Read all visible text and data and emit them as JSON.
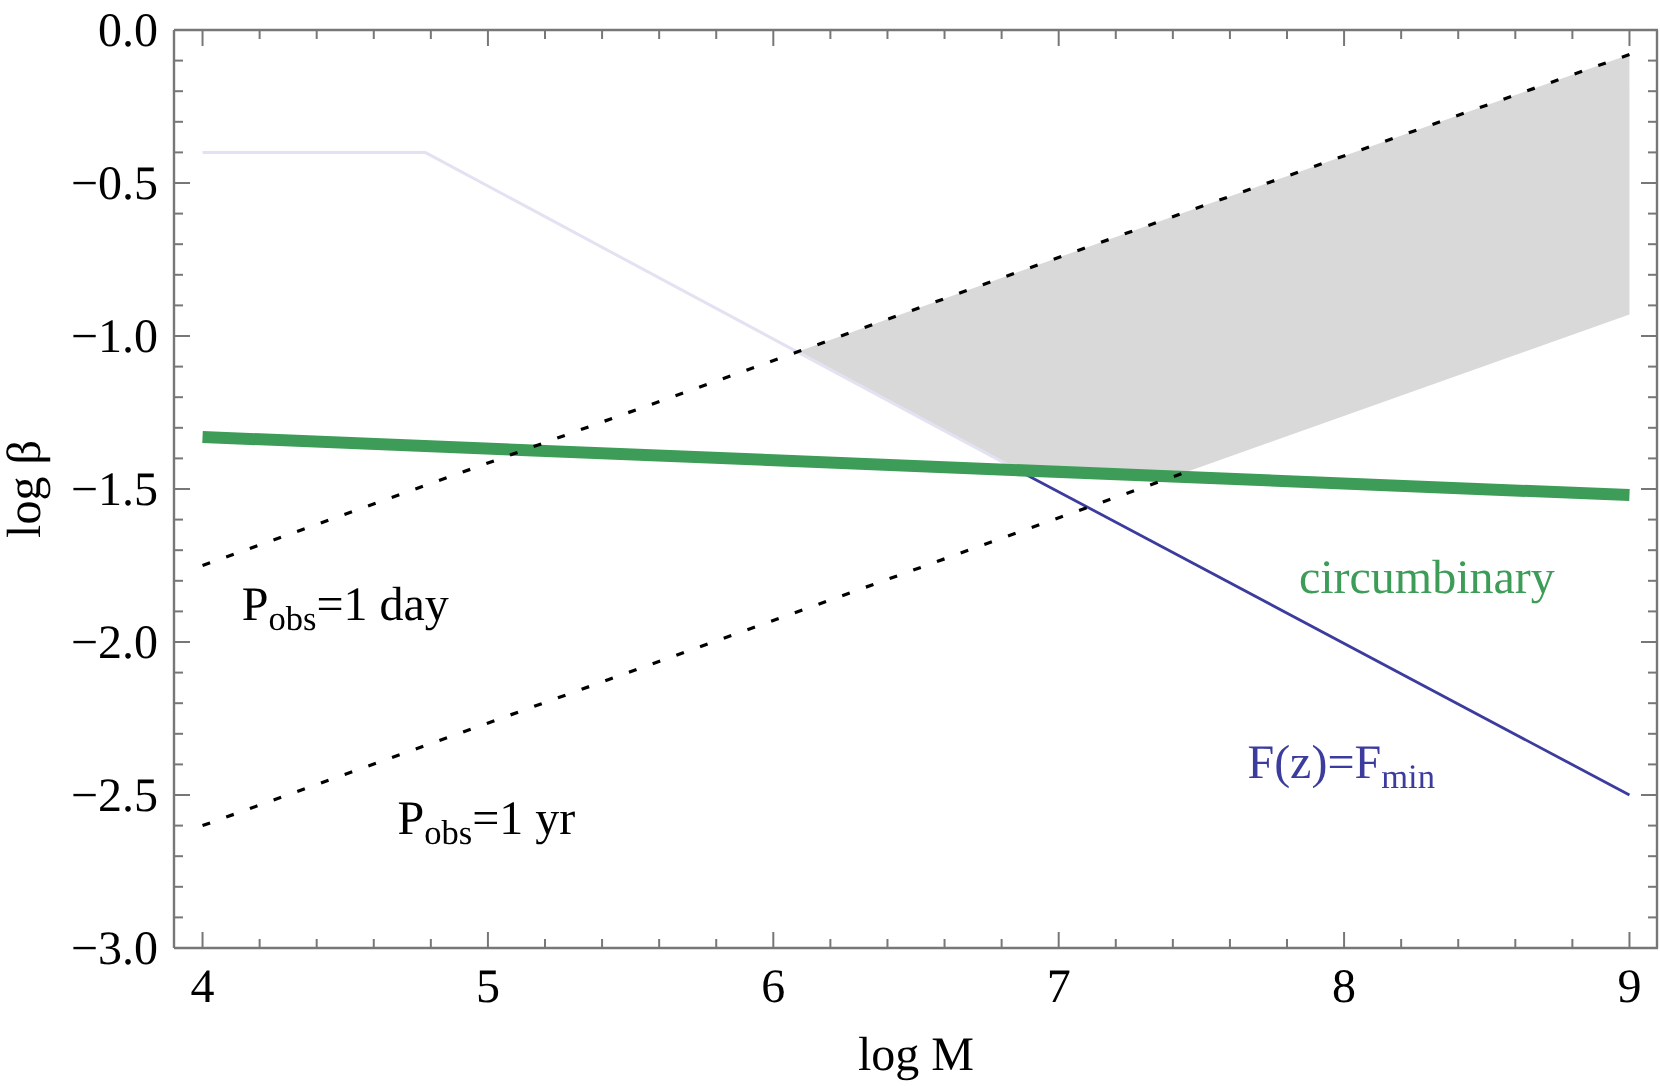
{
  "chart_data": {
    "type": "line",
    "xlabel": "log M",
    "ylabel": "log β",
    "xlim": [
      3.9,
      9.1
    ],
    "ylim": [
      -3,
      0
    ],
    "xticks": [
      4,
      {
        "value": 4.2,
        "label": null
      },
      {
        "value": 4.4,
        "label": null
      },
      {
        "value": 4.6,
        "label": null
      },
      {
        "value": 4.8,
        "label": null
      },
      5,
      {
        "value": 5.2,
        "label": null
      },
      {
        "value": 5.4,
        "label": null
      },
      {
        "value": 5.6,
        "label": null
      },
      {
        "value": 5.8,
        "label": null
      },
      6,
      {
        "value": 6.2,
        "label": null
      },
      {
        "value": 6.4,
        "label": null
      },
      {
        "value": 6.6,
        "label": null
      },
      {
        "value": 6.8,
        "label": null
      },
      7,
      {
        "value": 7.2,
        "label": null
      },
      {
        "value": 7.4,
        "label": null
      },
      {
        "value": 7.6,
        "label": null
      },
      {
        "value": 7.8,
        "label": null
      },
      8,
      {
        "value": 8.2,
        "label": null
      },
      {
        "value": 8.4,
        "label": null
      },
      {
        "value": 8.6,
        "label": null
      },
      {
        "value": 8.8,
        "label": null
      },
      9
    ],
    "yticks": [
      {
        "value": -3,
        "label": "−3.0"
      },
      {
        "value": -2.9,
        "label": null
      },
      {
        "value": -2.8,
        "label": null
      },
      {
        "value": -2.7,
        "label": null
      },
      {
        "value": -2.6,
        "label": null
      },
      {
        "value": -2.5,
        "label": "−2.5"
      },
      {
        "value": -2.4,
        "label": null
      },
      {
        "value": -2.3,
        "label": null
      },
      {
        "value": -2.2,
        "label": null
      },
      {
        "value": -2.1,
        "label": null
      },
      {
        "value": -2,
        "label": "−2.0"
      },
      {
        "value": -1.9,
        "label": null
      },
      {
        "value": -1.8,
        "label": null
      },
      {
        "value": -1.7,
        "label": null
      },
      {
        "value": -1.6,
        "label": null
      },
      {
        "value": -1.5,
        "label": "−1.5"
      },
      {
        "value": -1.4,
        "label": null
      },
      {
        "value": -1.3,
        "label": null
      },
      {
        "value": -1.2,
        "label": null
      },
      {
        "value": -1.1,
        "label": null
      },
      {
        "value": -1,
        "label": "−1.0"
      },
      {
        "value": -0.9,
        "label": null
      },
      {
        "value": -0.8,
        "label": null
      },
      {
        "value": -0.7,
        "label": null
      },
      {
        "value": -0.6,
        "label": null
      },
      {
        "value": -0.5,
        "label": "−0.5"
      },
      {
        "value": -0.4,
        "label": null
      },
      {
        "value": -0.3,
        "label": null
      },
      {
        "value": -0.2,
        "label": null
      },
      {
        "value": -0.1,
        "label": null
      },
      {
        "value": 0,
        "label": "0.0"
      }
    ],
    "series": [
      {
        "color": "#e2e2f2",
        "x": [
          4,
          4.78,
          6.86
        ],
        "values": [
          -0.4,
          -0.4,
          -1.44
        ]
      },
      {
        "name": "F(z)=F$_{min}$",
        "color": "#3c3c9e",
        "x": [
          6.86,
          9
        ],
        "values": [
          -1.44,
          -2.5
        ]
      },
      {
        "name": "circumbinary",
        "color": "#3d9c57",
        "x": [
          4,
          9
        ],
        "values": [
          -1.33,
          -1.52
        ]
      },
      {
        "name": "P$_{obs}$=1 day",
        "color": "#000000",
        "line_style": "dotted",
        "x": [
          4,
          6.09,
          6.86,
          7.43,
          9
        ],
        "values": [
          -1.75,
          -1.05,
          -0.79,
          -0.6,
          -0.08
        ],
        "lower": [
          null,
          -1.05,
          -1.44,
          -1.45,
          -0.93
        ],
        "upper": [
          null,
          -1.05,
          -0.79,
          -0.6,
          -0.08
        ]
      },
      {
        "name": "P$_{obs}$=1 yr",
        "color": "#000000",
        "line_style": "dotted",
        "x": [
          4,
          7.43
        ],
        "values": [
          -2.6,
          -1.45
        ]
      }
    ]
  }
}
